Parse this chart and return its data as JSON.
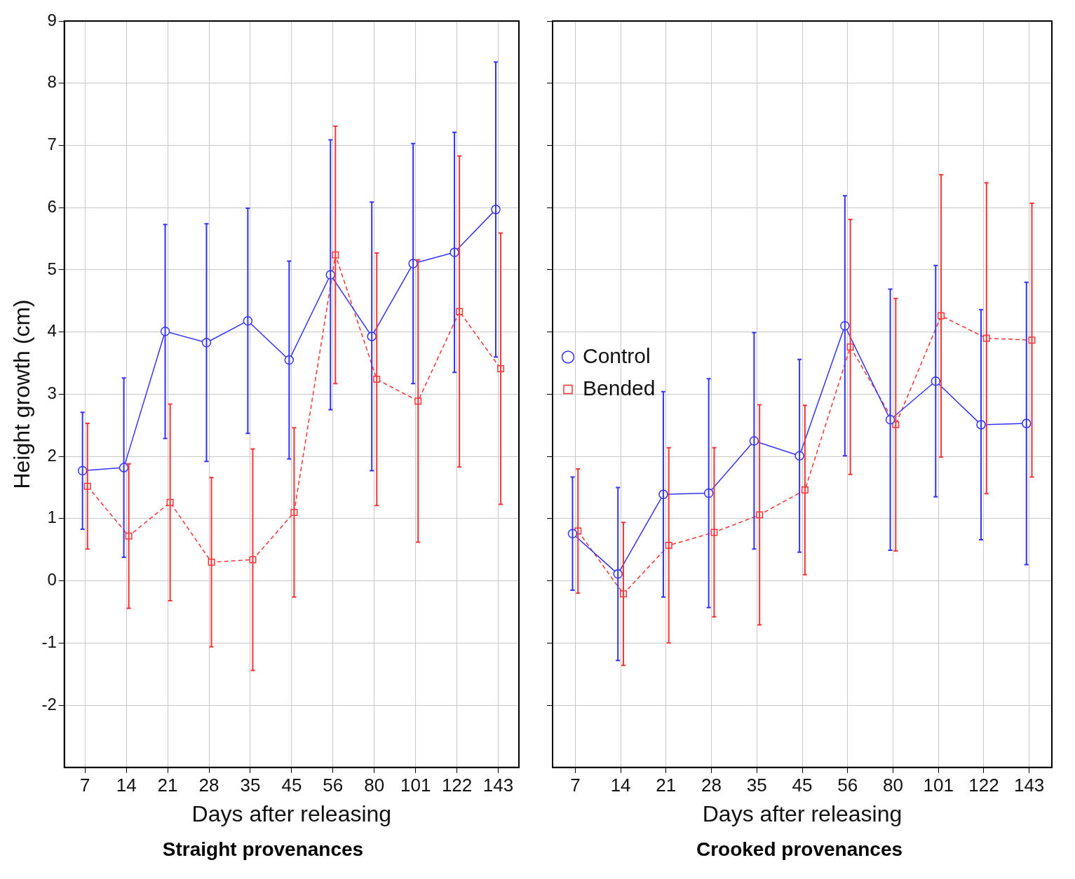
{
  "chart_data": [
    {
      "type": "line",
      "title": "Straight provenances",
      "xlabel": "Days after releasing",
      "ylabel": "Height growth (cm)",
      "categories": [
        "7",
        "14",
        "21",
        "28",
        "35",
        "45",
        "56",
        "80",
        "101",
        "122",
        "143"
      ],
      "ylim": [
        -3,
        9
      ],
      "yticks": [
        -2,
        -1,
        0,
        1,
        2,
        3,
        4,
        5,
        6,
        7,
        8,
        9
      ],
      "grid": true,
      "legend": false,
      "series": [
        {
          "color": "#3333ff",
          "marker": "circle",
          "line_style": "solid",
          "values": [
            1.77,
            1.82,
            4.01,
            3.83,
            4.18,
            3.55,
            4.92,
            3.93,
            5.1,
            5.28,
            5.97
          ],
          "errors": [
            0.94,
            1.44,
            1.72,
            1.91,
            1.81,
            1.59,
            2.17,
            2.16,
            1.93,
            1.93,
            2.37
          ]
        },
        {
          "color": "#ff3333",
          "marker": "square",
          "line_style": "dashed",
          "values": [
            1.52,
            0.72,
            1.26,
            0.3,
            0.34,
            1.1,
            5.24,
            3.24,
            2.89,
            4.33,
            3.41
          ],
          "errors": [
            1.01,
            1.16,
            1.58,
            1.36,
            1.78,
            1.36,
            2.07,
            2.03,
            2.27,
            2.5,
            2.18
          ]
        }
      ]
    },
    {
      "type": "line",
      "title": "Crooked provenances",
      "xlabel": "Days after releasing",
      "categories": [
        "7",
        "14",
        "21",
        "28",
        "35",
        "45",
        "56",
        "80",
        "101",
        "122",
        "143"
      ],
      "ylim": [
        -3,
        9
      ],
      "yticks": [
        -2,
        -1,
        0,
        1,
        2,
        3,
        4,
        5,
        6,
        7,
        8,
        9
      ],
      "grid": true,
      "legend": "top",
      "tick_labels": "x",
      "series": [
        {
          "name": "Control",
          "color": "#3333ff",
          "marker": "circle",
          "line_style": "solid",
          "values": [
            0.76,
            0.11,
            1.39,
            1.41,
            2.25,
            2.01,
            4.1,
            2.59,
            3.21,
            2.51,
            2.53
          ],
          "errors": [
            0.91,
            1.39,
            1.65,
            1.84,
            1.74,
            1.55,
            2.09,
            2.1,
            1.86,
            1.85,
            2.27
          ]
        },
        {
          "name": "Bended",
          "color": "#ff3333",
          "marker": "square",
          "line_style": "dashed",
          "values": [
            0.8,
            -0.21,
            0.57,
            0.78,
            1.06,
            1.46,
            3.76,
            2.51,
            4.26,
            3.9,
            3.87
          ],
          "errors": [
            1.0,
            1.15,
            1.57,
            1.36,
            1.77,
            1.36,
            2.05,
            2.03,
            2.27,
            2.5,
            2.2
          ]
        }
      ]
    }
  ]
}
